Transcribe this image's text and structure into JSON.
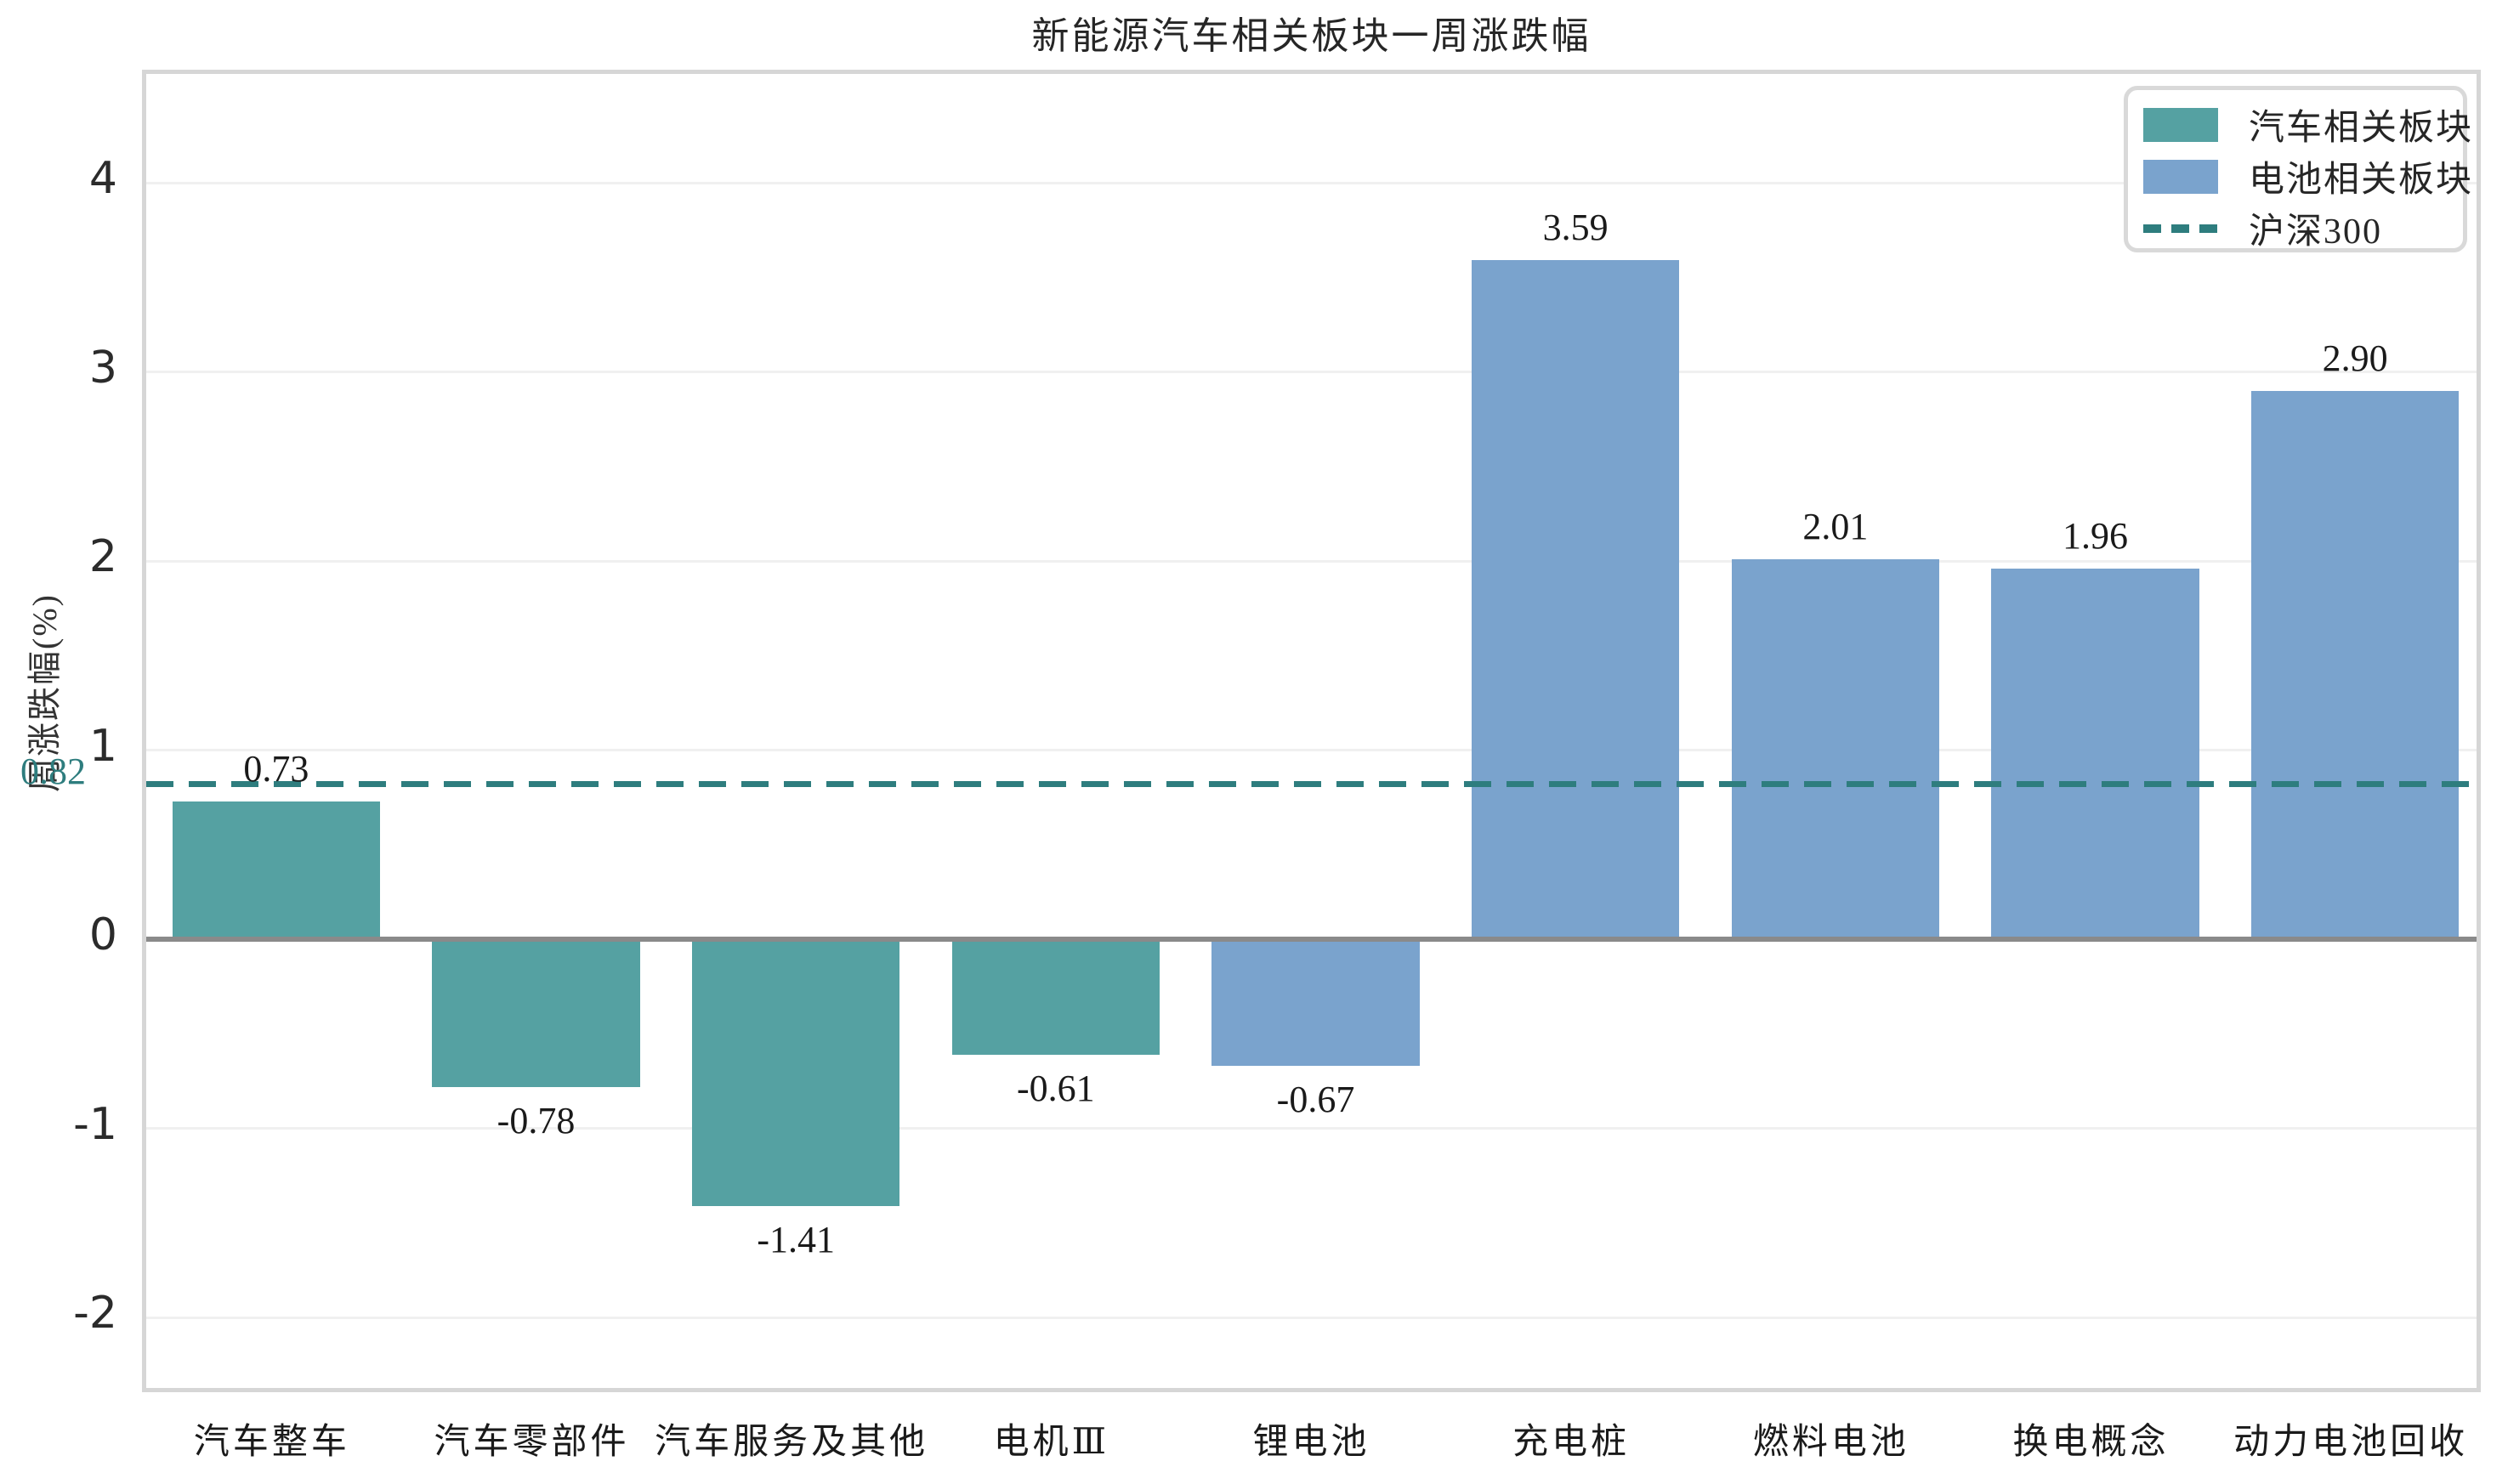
{
  "chart_data": {
    "type": "bar",
    "title": "新能源汽车相关板块一周涨跌幅",
    "ylabel": "周涨跌幅(%)",
    "xlabel": "",
    "categories": [
      "汽车整车",
      "汽车零部件",
      "汽车服务及其他",
      "电机Ⅲ",
      "锂电池",
      "充电桩",
      "燃料电池",
      "换电概念",
      "动力电池回收"
    ],
    "values": [
      0.73,
      -0.78,
      -1.41,
      -0.61,
      -0.67,
      3.59,
      2.01,
      1.96,
      2.9
    ],
    "value_labels": [
      "0.73",
      "-0.78",
      "-1.41",
      "-0.61",
      "-0.67",
      "3.59",
      "2.01",
      "1.96",
      "2.90"
    ],
    "series": [
      {
        "name": "汽车相关板块",
        "color": "#55a1a2",
        "indices": [
          0,
          1,
          2,
          3
        ]
      },
      {
        "name": "电池相关板块",
        "color": "#7aa3cd",
        "indices": [
          4,
          5,
          6,
          7,
          8
        ]
      }
    ],
    "reference_line": {
      "label": "沪深300",
      "value": 0.82,
      "annotation": "0.82",
      "color": "#2e7d7e",
      "style": "dashed"
    },
    "yticks": [
      4,
      3,
      2,
      1,
      0,
      -1,
      -2
    ],
    "ylim": [
      -2.42,
      4.58
    ],
    "grid": true,
    "legend_position": "upper right",
    "legend_entries": [
      {
        "label": "汽车相关板块",
        "swatch": "patch",
        "color": "#55a1a2"
      },
      {
        "label": "电池相关板块",
        "swatch": "patch",
        "color": "#7aa3cd"
      },
      {
        "label": "沪深300",
        "swatch": "dashed-line",
        "color": "#2e7d7e"
      }
    ],
    "colors": {
      "car_sectors": "#55a1a2",
      "battery_sectors": "#7aa3cd",
      "hs300_line": "#2e7d7e",
      "zero_line": "#8a8a8a",
      "gridline": "#f0f0f0",
      "axes_border": "#d6d6d6"
    }
  }
}
